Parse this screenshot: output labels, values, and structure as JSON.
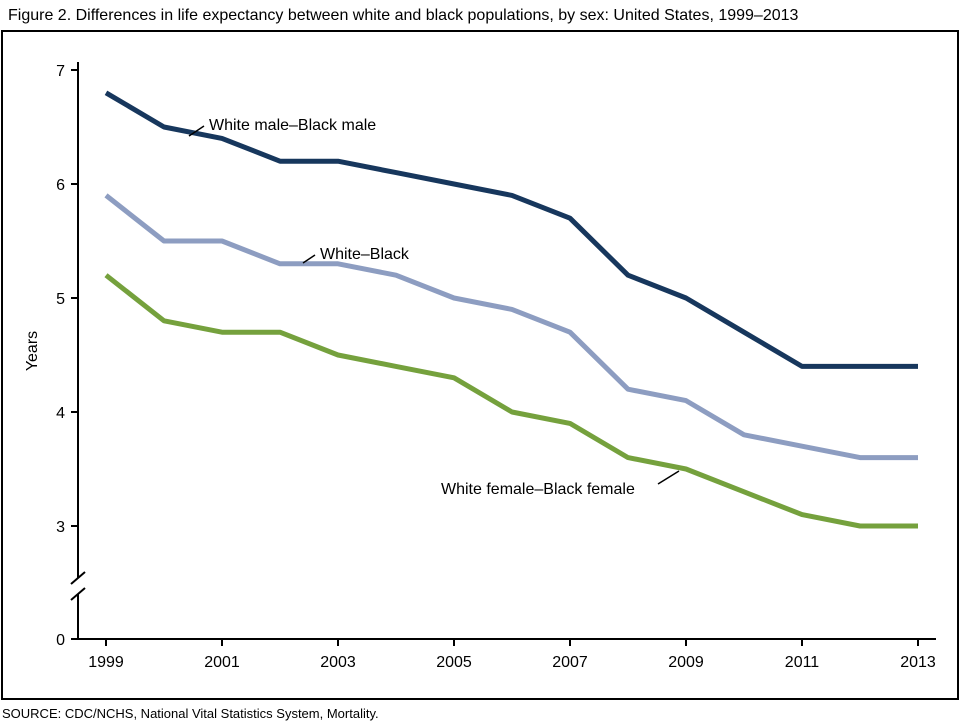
{
  "title": "Figure 2. Differences in life expectancy between white and black populations, by sex: United States, 1999–2013",
  "source": "SOURCE: CDC/NCHS, National Vital Statistics System, Mortality.",
  "chart_data": {
    "type": "line",
    "title": "Differences in life expectancy between white and black populations, by sex: United States, 1999–2013",
    "ylabel": "Years",
    "xlabel": "",
    "x": [
      1999,
      2000,
      2001,
      2002,
      2003,
      2004,
      2005,
      2006,
      2007,
      2008,
      2009,
      2010,
      2011,
      2012,
      2013
    ],
    "x_tick_labels": [
      "1999",
      "2001",
      "2003",
      "2005",
      "2007",
      "2009",
      "2011",
      "2013"
    ],
    "y_ticks": [
      7,
      6,
      5,
      4,
      3,
      0
    ],
    "ylim": [
      0,
      7
    ],
    "y_axis_break": true,
    "grid": false,
    "legend": "inline-annotations",
    "series": [
      {
        "name": "White male–Black male",
        "color": "#17375d",
        "values": [
          6.8,
          6.5,
          6.4,
          6.2,
          6.2,
          6.1,
          6.0,
          5.9,
          5.7,
          5.2,
          5.0,
          4.7,
          4.4,
          4.4,
          4.4
        ]
      },
      {
        "name": "White–Black",
        "color": "#8d9dc1",
        "values": [
          5.9,
          5.5,
          5.5,
          5.3,
          5.3,
          5.2,
          5.0,
          4.9,
          4.7,
          4.2,
          4.1,
          3.8,
          3.7,
          3.6,
          3.6
        ]
      },
      {
        "name": "White female–Black female",
        "color": "#75a13d",
        "values": [
          5.2,
          4.8,
          4.7,
          4.7,
          4.5,
          4.4,
          4.3,
          4.0,
          3.9,
          3.6,
          3.5,
          3.3,
          3.1,
          3.0,
          3.0
        ]
      }
    ]
  }
}
